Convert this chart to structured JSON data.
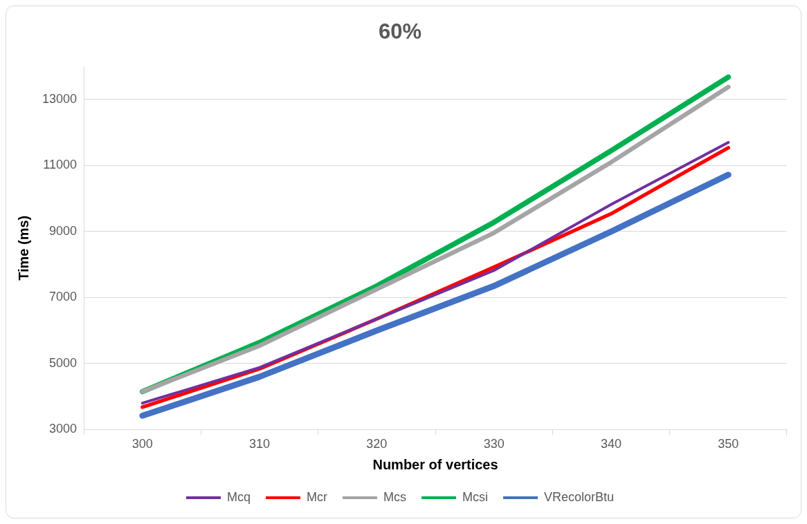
{
  "chart_data": {
    "type": "line",
    "title": "60%",
    "xlabel": "Number of vertices",
    "ylabel": "Time (ms)",
    "categories": [
      "300",
      "310",
      "320",
      "330",
      "340",
      "350"
    ],
    "series": [
      {
        "name": "Mcq",
        "color": "#7030a0",
        "values": [
          3800,
          4880,
          6350,
          7820,
          9820,
          11700
        ]
      },
      {
        "name": "Mcr",
        "color": "#ff0000",
        "values": [
          3680,
          4840,
          6350,
          7920,
          9540,
          11540
        ]
      },
      {
        "name": "Mcs",
        "color": "#a5a5a5",
        "values": [
          4150,
          5540,
          7250,
          8960,
          11100,
          13380
        ]
      },
      {
        "name": "Mcsi",
        "color": "#00b050",
        "values": [
          4150,
          5640,
          7350,
          9280,
          11450,
          13680
        ]
      },
      {
        "name": "VRecolorBtu",
        "color": "#4472c4",
        "values": [
          3420,
          4600,
          6000,
          7350,
          9000,
          10720
        ]
      }
    ],
    "ylim": [
      3000,
      14000
    ],
    "yticks": [
      3000,
      5000,
      7000,
      9000,
      11000,
      13000
    ],
    "grid": "y",
    "legend": "bottom",
    "marker": "none",
    "line_style": "solid"
  }
}
